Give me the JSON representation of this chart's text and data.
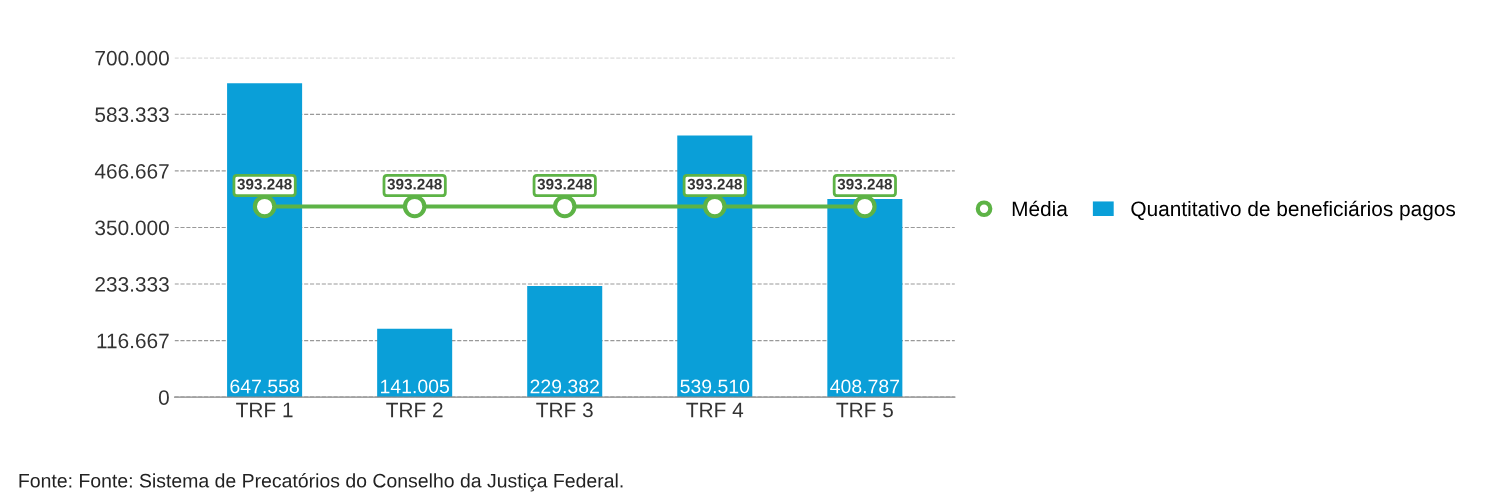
{
  "chart_data": {
    "type": "bar",
    "categories": [
      "TRF 1",
      "TRF 2",
      "TRF 3",
      "TRF 4",
      "TRF 5"
    ],
    "series": [
      {
        "name": "Média",
        "type": "line",
        "color": "#5db346",
        "marker": "circle",
        "values": [
          393248,
          393248,
          393248,
          393248,
          393248
        ],
        "value_labels": [
          "393.248",
          "393.248",
          "393.248",
          "393.248",
          "393.248"
        ]
      },
      {
        "name": "Quantitativo de beneficiários pagos",
        "color": "#0a9fd8",
        "values": [
          647558,
          141005,
          229382,
          539510,
          408787
        ],
        "value_labels": [
          "647.558",
          "141.005",
          "229.382",
          "539.510",
          "408.787"
        ]
      }
    ],
    "ylim": [
      0,
      700000
    ],
    "yticks": [
      0,
      {
        "value": 116667,
        "label": "116.667"
      },
      {
        "value": 233333,
        "label": "233.333"
      },
      {
        "value": 350000,
        "label": "350.000"
      },
      {
        "value": 466667,
        "label": "466.667"
      },
      {
        "value": 583333,
        "label": "583.333"
      },
      {
        "value": 700000,
        "label": "700.000"
      }
    ],
    "grid": "y",
    "legend": "right",
    "annotations": [
      "Fonte: Fonte: Sistema de Precatórios do Conselho da Justiça Federal."
    ]
  }
}
